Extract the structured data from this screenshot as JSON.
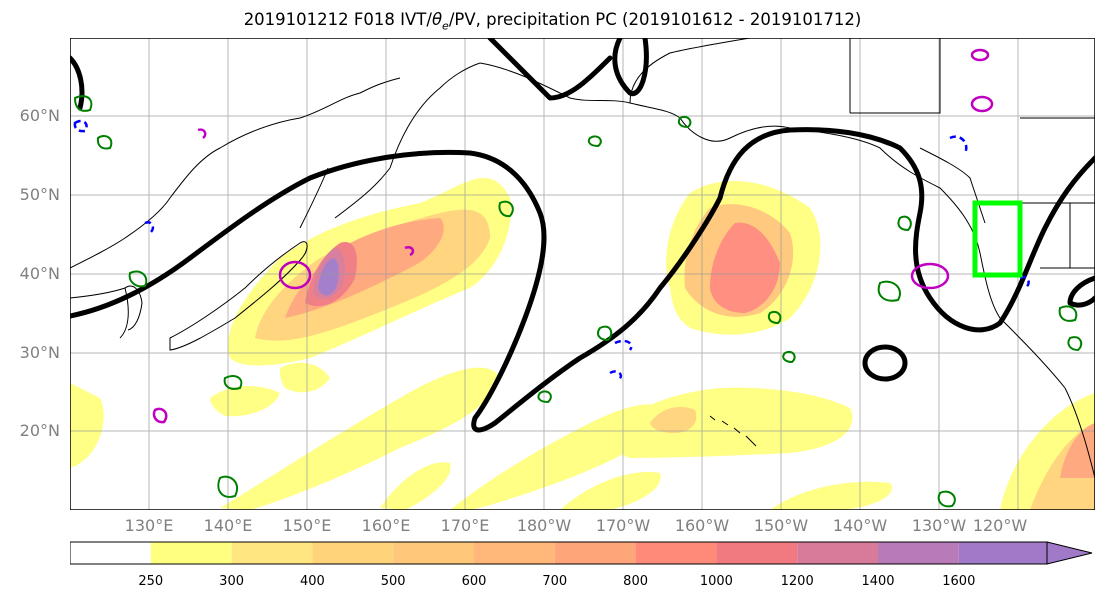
{
  "figure": {
    "title_prefix": "2019101212 F018 IVT/",
    "title_theta": "θ",
    "title_sub": "e",
    "title_suffix": "/PV, precipitation PC (2019101612 - 2019101712)"
  },
  "map": {
    "lat_labels": [
      "60°N",
      "50°N",
      "40°N",
      "30°N",
      "20°N"
    ],
    "lon_labels": [
      "130°E",
      "140°E",
      "150°E",
      "160°E",
      "170°E",
      "180°W",
      "170°W",
      "160°W",
      "150°W",
      "140°W",
      "130°W",
      "120°W"
    ],
    "region": "North Pacific",
    "extent": {
      "lon_min": 120,
      "lon_max": 250,
      "lat_min": 10,
      "lat_max": 70
    },
    "colors": {
      "ocean": "#ffffff",
      "coast": "#000000",
      "pv_contour": "#000000",
      "positive_anomaly": "#008000",
      "negative_anomaly": "#0000ff",
      "magenta_contour": "#c000c0",
      "target_box": "#00ff00"
    }
  },
  "colorbar": {
    "levels": [
      "250",
      "300",
      "400",
      "500",
      "600",
      "700",
      "800",
      "1000",
      "1200",
      "1400",
      "1600"
    ],
    "colors": [
      "#ffff80",
      "#ffe680",
      "#ffd37a",
      "#ffc77a",
      "#ffb87a",
      "#ffa57a",
      "#ff8a7a",
      "#f07a80",
      "#d87a99",
      "#b87ab8",
      "#a07ac8"
    ],
    "extend": "max"
  }
}
